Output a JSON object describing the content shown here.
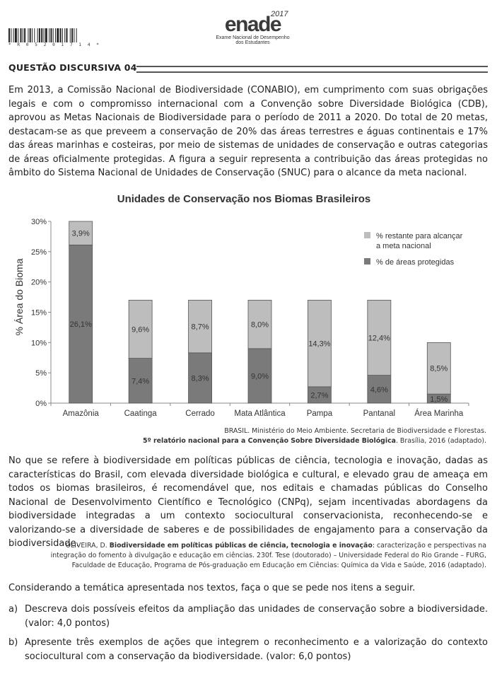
{
  "header": {
    "barcode_text": "* R 0 5 2 0 1 7 1 4 *",
    "logo_word": "enade",
    "logo_year": "2017",
    "logo_sub1": "Exame Nacional de Desempenho",
    "logo_sub2": "dos Estudantes"
  },
  "question": {
    "title": "QUESTÃO DISCURSIVA 04",
    "intro": "Em 2013, a Comissão Nacional de Biodiversidade (CONABIO), em cumprimento com suas obrigações legais e com o compromisso internacional com a Convenção sobre Diversidade Biológica (CDB), aprovou as Metas Nacionais de Biodiversidade para o período de 2011 a 2020. Do total de 20 metas, destacam-se as que preveem a conservação de 20% das áreas terrestres e águas continentais e 17% das áreas marinhas e costeiras, por meio de sistemas de unidades de conservação e outras categorias de áreas oficialmente protegidas. A figura a seguir representa a contribuição das áreas protegidas no âmbito do Sistema Nacional de Unidades de Conservação (SNUC) para o alcance da meta nacional.",
    "source1_line1": "BRASIL. Ministério do Meio Ambiente. Secretaria de Biodiversidade e Florestas.",
    "source1_bold": "5º relatório nacional para a Convenção Sobre Diversidade Biológica",
    "source1_tail": ". Brasília, 2016 (adaptado).",
    "para2": "No que se refere à biodiversidade em políticas públicas de ciência, tecnologia e inovação, dadas as características do Brasil, com elevada diversidade biológica e cultural, e elevado grau de ameaça em todos os biomas brasileiros, é recomendável que, nos editais e chamadas públicas do Conselho Nacional de Desenvolvimento Científico e Tecnológico (CNPq), sejam incentivadas abordagens da biodiversidade integradas a um contexto sociocultural conservacionista, reconhecendo-se e valorizando-se a diversidade de saberes e de possibilidades de engajamento para a conservação da biodiversidade.",
    "source2_author": "OLIVEIRA, D. ",
    "source2_bold": "Biodiversidade em políticas públicas de ciência, tecnologia e inovação",
    "source2_tail": ": caracterização e perspectivas na integração do fomento à divulgação e educação em ciências. 230f. Tese (doutorado) – Universidade Federal do Rio Grande – FURG, Faculdade de Educação, Programa de Pós-graduação em Educação em Ciências: Química da Vida e Saúde, 2016 (adaptado).",
    "considering": "Considerando a temática apresentada nos textos, faça o que se pede nos itens a seguir.",
    "item_a_label": "a)",
    "item_a": "Descreva dois possíveis efeitos da ampliação das unidades de conservação sobre a biodiversidade. (valor: 4,0 pontos)",
    "item_b_label": "b)",
    "item_b": "Apresente três exemplos de ações que integrem o reconhecimento e a valorização do contexto sociocultural com a conservação da biodiversidade. (valor: 6,0 pontos)"
  },
  "chart_data": {
    "type": "bar",
    "stacked": true,
    "title": "Unidades de Conservação nos Biomas Brasileiros",
    "xlabel": "",
    "ylabel": "% Área do Bioma",
    "ylim": [
      0,
      30
    ],
    "yticks": [
      0,
      5,
      10,
      15,
      20,
      25,
      30
    ],
    "ytick_labels": [
      "0%",
      "5%",
      "10%",
      "15%",
      "20%",
      "25%",
      "30%"
    ],
    "categories": [
      "Amazônia",
      "Caatinga",
      "Cerrado",
      "Mata Atlântica",
      "Pampa",
      "Pantanal",
      "Área Marinha"
    ],
    "series": [
      {
        "name": "% de áreas protegidas",
        "color": "#7a7a7a",
        "values": [
          26.1,
          7.4,
          8.3,
          9.0,
          2.7,
          4.6,
          1.5
        ],
        "labels": [
          "26,1%",
          "7,4%",
          "8,3%",
          "9,0%",
          "2,7%",
          "4,6%",
          "1,5%"
        ]
      },
      {
        "name": "% restante para alcançar a meta nacional",
        "color": "#bdbdbd",
        "values": [
          3.9,
          9.6,
          8.7,
          8.0,
          14.3,
          12.4,
          8.5
        ],
        "labels": [
          "3,9%",
          "9,6%",
          "8,7%",
          "8,0%",
          "14,3%",
          "12,4%",
          "8,5%"
        ]
      }
    ],
    "legend": [
      {
        "label_line1": "% restante para alcançar",
        "label_line2": "a meta nacional",
        "color": "#bdbdbd"
      },
      {
        "label_line1": "% de áreas protegidas",
        "label_line2": "",
        "color": "#7a7a7a"
      }
    ],
    "legend_position": "top-right",
    "grid": false
  }
}
